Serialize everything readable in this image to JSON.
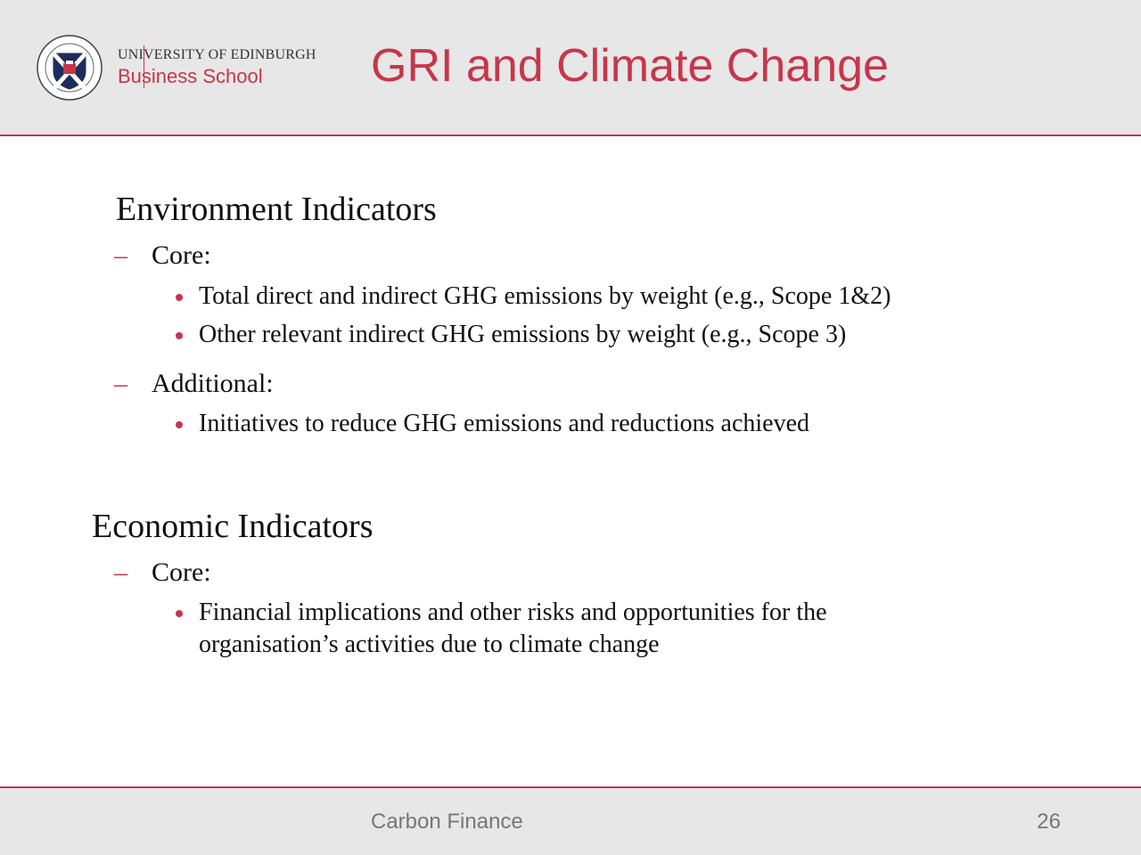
{
  "header": {
    "university": "UNIVERSITY OF EDINBURGH",
    "school": "Business School",
    "crest_icon": "university-crest-icon",
    "title": "GRI and Climate Change"
  },
  "sections": [
    {
      "title": "Environment Indicators",
      "groups": [
        {
          "label": "Core:",
          "bullets": [
            "Total direct and indirect GHG emissions by weight (e.g., Scope 1&2)",
            "Other relevant indirect GHG emissions by weight (e.g., Scope 3)"
          ]
        },
        {
          "label": "Additional:",
          "bullets": [
            "Initiatives to reduce GHG emissions and reductions achieved"
          ]
        }
      ]
    },
    {
      "title": "Economic Indicators",
      "groups": [
        {
          "label": "Core:",
          "bullets": [
            "Financial implications and other risks and opportunities for the organisation’s activities due to climate change"
          ]
        }
      ]
    }
  ],
  "footer": {
    "text": "Carbon Finance",
    "page": "26"
  },
  "colors": {
    "accent": "#c8354a",
    "band": "#e7e7e7"
  }
}
